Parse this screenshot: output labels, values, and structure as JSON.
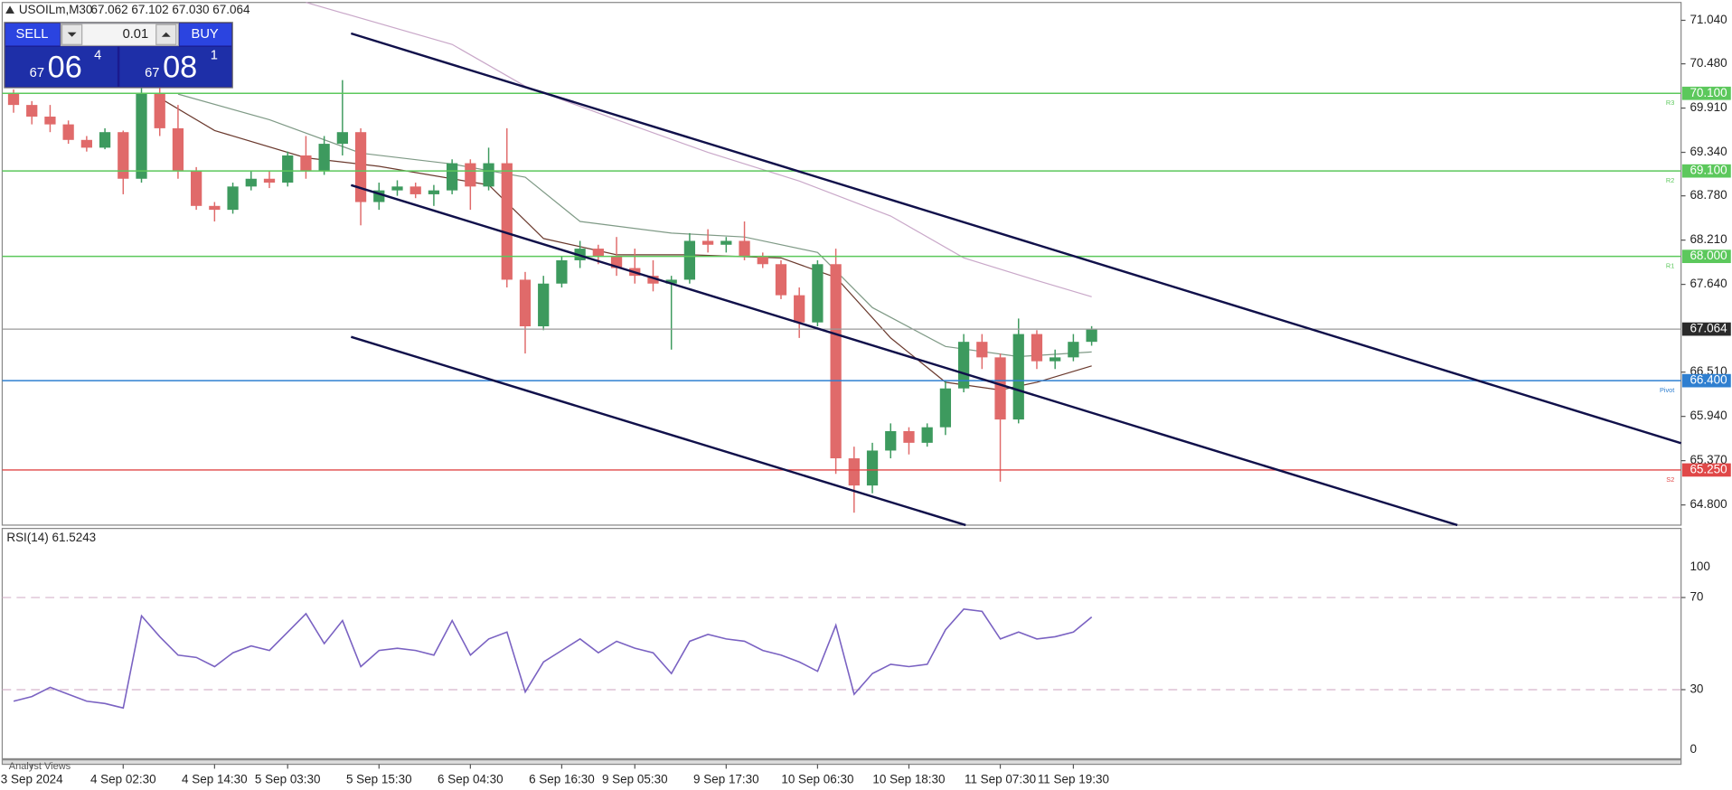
{
  "chart_data": [
    {
      "type": "candlestick",
      "title": "USOILm,M30",
      "quote": "67.062 67.102 67.030 67.064",
      "open": [
        70.1,
        69.95,
        69.8,
        69.7,
        69.5,
        69.4,
        69.6,
        69.0,
        70.1,
        69.65,
        69.1,
        68.65,
        68.6,
        68.9,
        69.0,
        68.95,
        69.3,
        69.1,
        69.45,
        69.6,
        68.7,
        68.85,
        68.9,
        68.8,
        68.85,
        69.2,
        68.9,
        69.2,
        67.7,
        67.1,
        67.65,
        67.95,
        68.1,
        68.0,
        67.85,
        67.75,
        67.65,
        67.7,
        68.2,
        68.15,
        68.2,
        68.0,
        67.9,
        67.5,
        67.15,
        67.9,
        65.4,
        65.05,
        65.5,
        65.75,
        65.6,
        65.8,
        66.3,
        66.9,
        66.7,
        65.9,
        67.0,
        66.65,
        66.7,
        66.9
      ],
      "high": [
        70.15,
        70.0,
        69.95,
        69.75,
        69.55,
        69.65,
        69.62,
        70.25,
        70.3,
        69.95,
        69.15,
        68.7,
        68.95,
        69.1,
        69.1,
        69.35,
        69.55,
        69.55,
        70.27,
        69.65,
        68.95,
        68.98,
        68.95,
        68.92,
        69.25,
        69.25,
        69.4,
        69.65,
        67.8,
        67.75,
        68.0,
        68.2,
        68.15,
        68.25,
        68.1,
        67.95,
        67.75,
        68.3,
        68.35,
        68.25,
        68.45,
        68.05,
        67.95,
        67.6,
        67.95,
        68.1,
        65.55,
        65.6,
        65.85,
        65.8,
        65.85,
        66.4,
        67.0,
        67.0,
        66.75,
        67.2,
        67.05,
        66.8,
        67.0,
        67.102
      ],
      "low": [
        69.85,
        69.7,
        69.6,
        69.45,
        69.35,
        69.38,
        68.8,
        68.95,
        69.55,
        69.0,
        68.6,
        68.45,
        68.55,
        68.85,
        68.88,
        68.9,
        69.0,
        69.05,
        69.3,
        68.4,
        68.6,
        68.78,
        68.75,
        68.65,
        68.8,
        68.6,
        68.85,
        67.6,
        66.75,
        67.05,
        67.6,
        67.85,
        67.9,
        67.75,
        67.65,
        67.55,
        66.8,
        67.65,
        68.05,
        68.05,
        67.95,
        67.85,
        67.45,
        66.95,
        67.1,
        65.2,
        64.7,
        64.95,
        65.4,
        65.45,
        65.55,
        65.7,
        66.25,
        66.55,
        65.1,
        65.85,
        66.55,
        66.55,
        66.65,
        66.85
      ],
      "close": [
        69.95,
        69.8,
        69.7,
        69.5,
        69.4,
        69.6,
        69.0,
        70.1,
        69.65,
        69.1,
        68.65,
        68.6,
        68.9,
        69.0,
        68.95,
        69.3,
        69.1,
        69.45,
        69.6,
        68.7,
        68.85,
        68.9,
        68.8,
        68.85,
        69.2,
        68.9,
        69.2,
        67.7,
        67.1,
        67.65,
        67.95,
        68.1,
        68.0,
        67.85,
        67.75,
        67.65,
        67.7,
        68.2,
        68.15,
        68.2,
        68.0,
        67.9,
        67.5,
        67.15,
        67.9,
        65.4,
        65.05,
        65.5,
        65.75,
        65.6,
        65.8,
        66.3,
        66.9,
        66.7,
        65.9,
        67.0,
        66.65,
        66.7,
        66.9,
        67.064
      ],
      "up_color": "#3d9a5e",
      "down_color": "#e06a6a",
      "series": [
        {
          "color": "#c9a8c9",
          "x": [
            16,
            24,
            28,
            33,
            38,
            43,
            48,
            52,
            56,
            59
          ],
          "values": [
            71.27,
            70.73,
            70.19,
            69.76,
            69.34,
            68.97,
            68.52,
            67.98,
            67.69,
            67.48
          ]
        },
        {
          "color": "#7f9a86",
          "x": [
            9,
            14,
            19,
            24,
            28,
            31,
            36,
            40,
            44,
            47,
            51,
            55,
            59
          ],
          "values": [
            70.09,
            69.76,
            69.33,
            69.19,
            69.02,
            68.45,
            68.3,
            68.25,
            68.05,
            67.34,
            66.84,
            66.71,
            66.77
          ]
        },
        {
          "color": "#6b3a2e",
          "x": [
            8,
            11,
            16,
            20,
            26,
            29,
            33,
            37,
            42,
            45,
            48,
            51,
            54,
            56,
            59
          ],
          "values": [
            70.04,
            69.62,
            69.27,
            69.16,
            68.92,
            68.23,
            68.02,
            68.02,
            67.98,
            67.73,
            66.95,
            66.38,
            66.28,
            66.38,
            66.59
          ]
        }
      ],
      "ylim": [
        64.54,
        71.27
      ],
      "yticks": [
        {
          "value": 71.04,
          "label": "71.040"
        },
        {
          "value": 70.48,
          "label": "70.480"
        },
        {
          "value": 69.91,
          "label": "69.910"
        },
        {
          "value": 69.34,
          "label": "69.340"
        },
        {
          "value": 68.78,
          "label": "68.780"
        },
        {
          "value": 68.21,
          "label": "68.210"
        },
        {
          "value": 67.64,
          "label": "67.640"
        },
        {
          "value": 66.51,
          "label": "66.510"
        },
        {
          "value": 65.94,
          "label": "65.940"
        },
        {
          "value": 65.37,
          "label": "65.370"
        },
        {
          "value": 64.8,
          "label": "64.800"
        }
      ],
      "levels": [
        {
          "name": "R3",
          "value": 70.1,
          "label": "70.100",
          "color": "#5cc85c"
        },
        {
          "name": "R2",
          "value": 69.1,
          "label": "69.100",
          "color": "#5cc85c"
        },
        {
          "name": "R1",
          "value": 68.0,
          "label": "68.000",
          "color": "#5cc85c"
        },
        {
          "name": "Pivot",
          "value": 66.4,
          "label": "66.400",
          "color": "#2f7fd0"
        },
        {
          "name": "S2",
          "value": 65.25,
          "label": "65.250",
          "color": "#e04848"
        }
      ],
      "current_price": 67.064,
      "grid": false
    },
    {
      "type": "line",
      "title": "RSI(14) 61.5243",
      "color": "#7a62c2",
      "categories": [
        null,
        "3 Sep 2024",
        null,
        null,
        null,
        null,
        "4 Sep 02:30",
        null,
        null,
        null,
        null,
        "4 Sep 14:30",
        null,
        null,
        null,
        "5 Sep 03:30",
        null,
        null,
        null,
        null,
        "5 Sep 15:30",
        null,
        null,
        null,
        null,
        "6 Sep 04:30",
        null,
        null,
        null,
        null,
        "6 Sep 16:30",
        null,
        null,
        null,
        "9 Sep 05:30",
        null,
        null,
        null,
        null,
        "9 Sep 17:30",
        null,
        null,
        null,
        null,
        "10 Sep 06:30",
        null,
        null,
        null,
        null,
        "10 Sep 18:30",
        null,
        null,
        null,
        null,
        "11 Sep 07:30",
        null,
        null,
        null,
        "11 Sep 19:30",
        null
      ],
      "values": [
        25,
        27,
        31,
        28,
        25,
        24,
        22,
        62,
        53,
        45,
        44,
        40,
        46,
        49,
        47,
        55,
        63,
        50,
        60,
        40,
        47,
        48,
        47,
        45,
        60,
        45,
        52,
        55,
        29,
        42,
        47,
        52,
        46,
        51,
        48,
        46,
        37,
        51,
        54,
        52,
        51,
        47,
        45,
        42,
        38,
        58,
        28,
        37,
        41,
        40,
        41,
        56,
        65,
        64,
        52,
        55,
        52,
        53,
        55,
        61.52
      ],
      "ylim": [
        0,
        100
      ],
      "yticks": [
        0,
        30,
        70,
        100
      ]
    }
  ],
  "trade_panel": {
    "sell": "SELL",
    "buy": "BUY",
    "lot": "0.01",
    "sell_price": [
      "67",
      "06",
      "4"
    ],
    "buy_price": [
      "67",
      "08",
      "1"
    ]
  },
  "footer": "Analyst Views"
}
